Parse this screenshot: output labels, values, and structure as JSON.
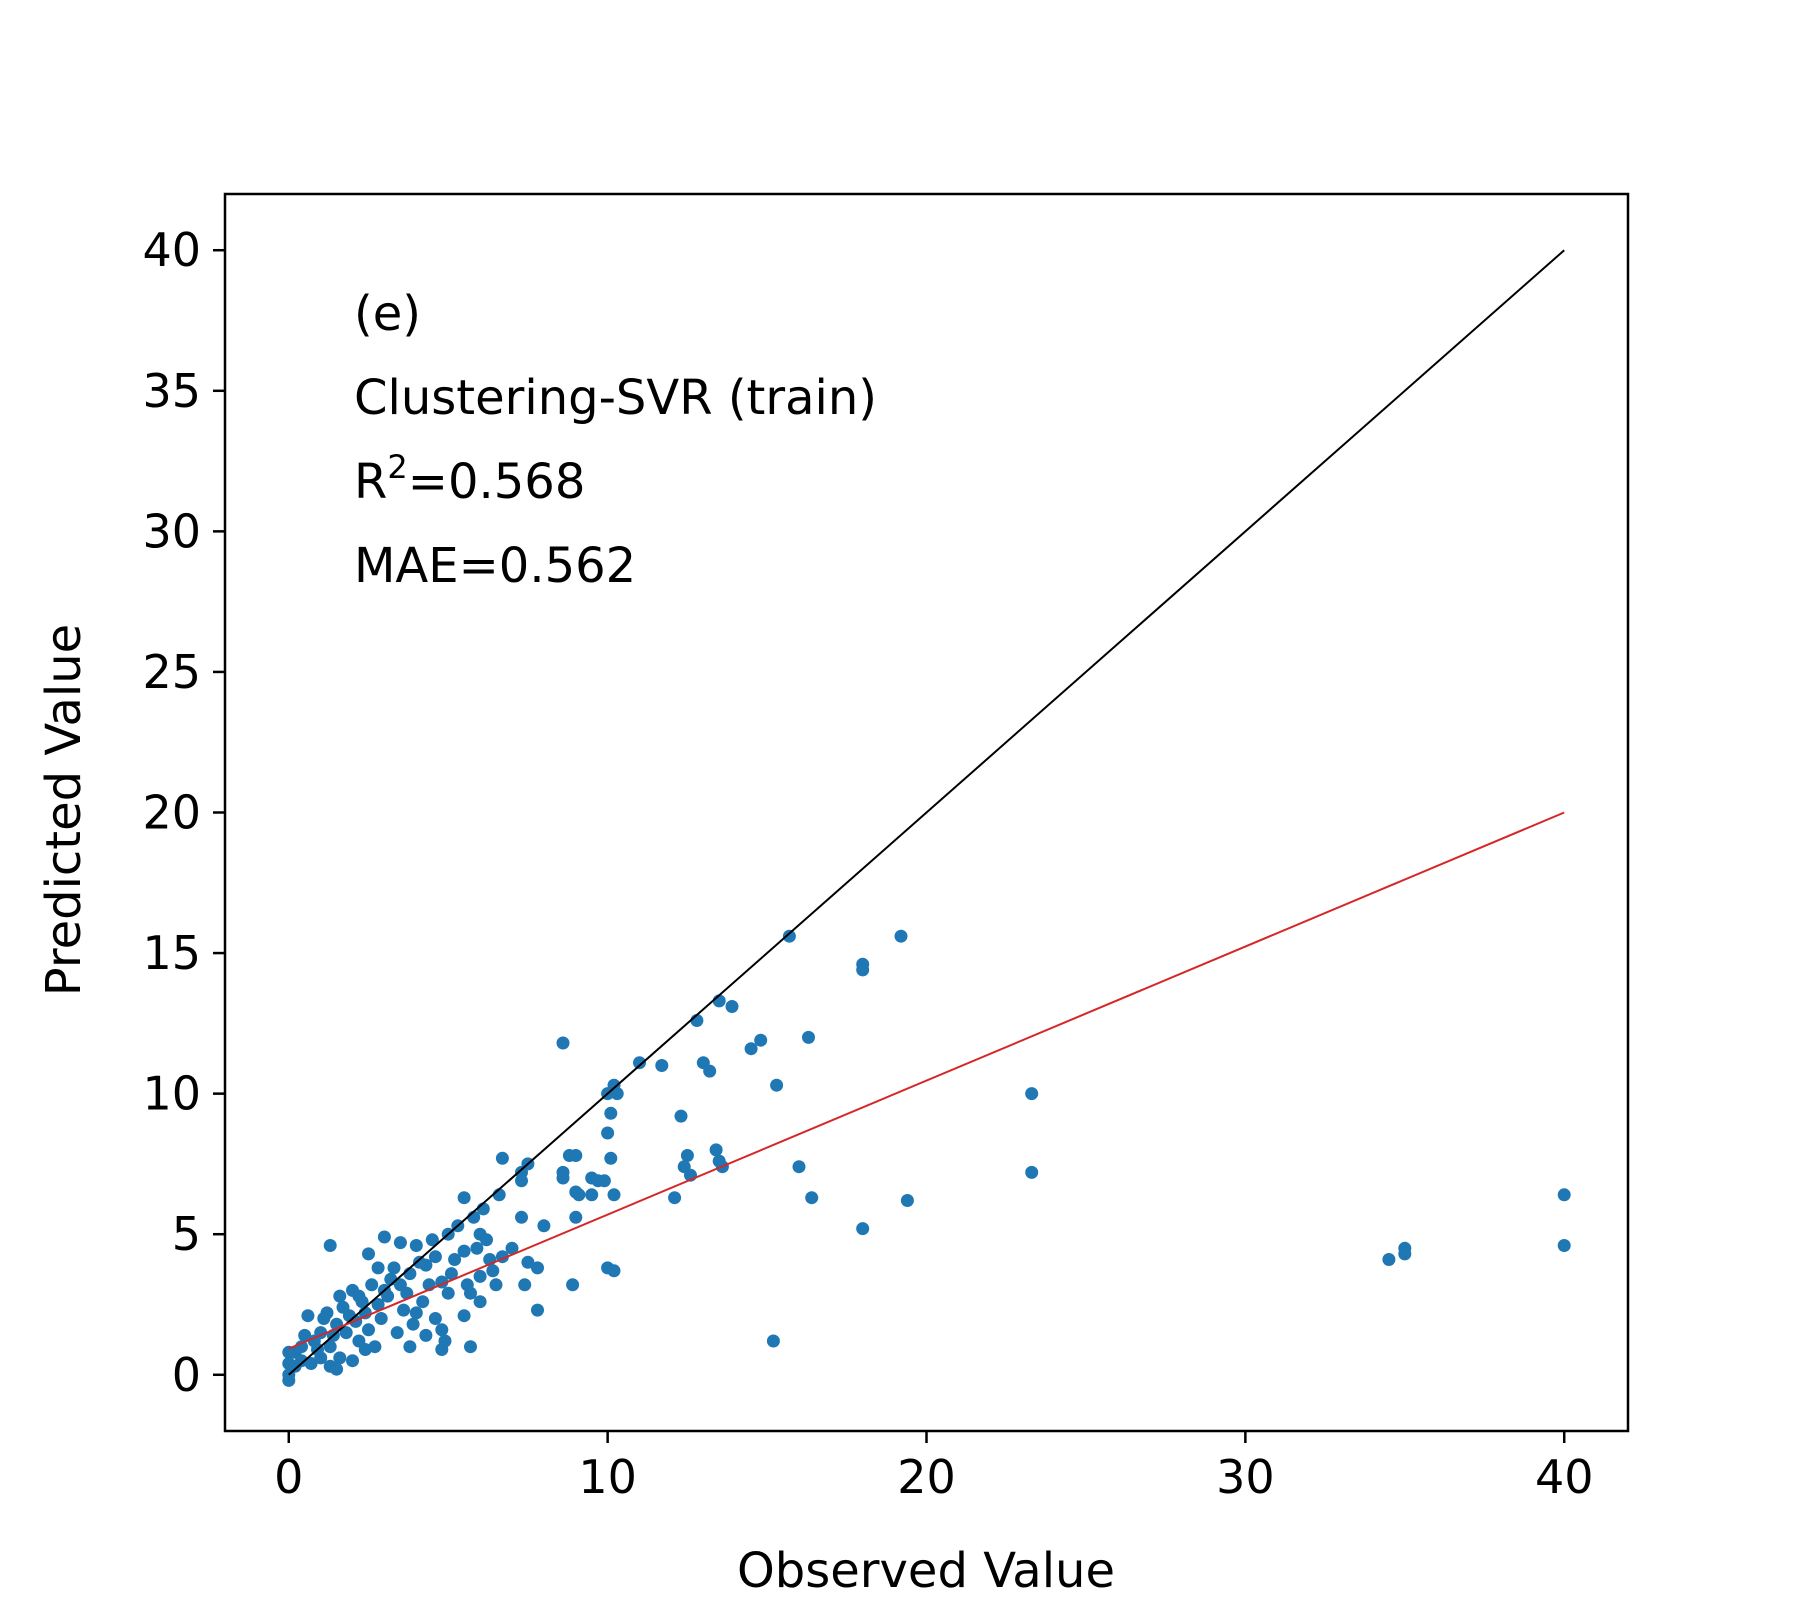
{
  "chart_data": {
    "type": "scatter",
    "xlabel": "Observed Value",
    "ylabel": "Predicted Value",
    "xlim": [
      -2,
      42
    ],
    "ylim": [
      -2,
      42
    ],
    "xticks": [
      "0",
      "10",
      "20",
      "30",
      "40"
    ],
    "yticks": [
      "0",
      "5",
      "10",
      "15",
      "20",
      "25",
      "30",
      "35",
      "40"
    ],
    "annotations": {
      "panel": "(e)",
      "model": "Clustering-SVR (train)",
      "r2_prefix": "R",
      "r2_sup": "2",
      "r2_value": "=0.568",
      "mae": "MAE=0.562"
    },
    "grid": false,
    "colors": {
      "points": "#1f77b4",
      "identity_line": "#000000",
      "fit_line": "#d62728"
    },
    "lines": [
      {
        "kind": "identity",
        "x": [
          0,
          40
        ],
        "y": [
          0,
          40
        ]
      },
      {
        "kind": "fit",
        "x": [
          0,
          40
        ],
        "y": [
          0.93,
          20.0
        ]
      }
    ],
    "series": [
      {
        "points": [
          [
            15.7,
            15.6
          ],
          [
            19.2,
            15.6
          ],
          [
            18.0,
            14.6
          ],
          [
            18.0,
            14.4
          ],
          [
            13.5,
            13.3
          ],
          [
            13.9,
            13.1
          ],
          [
            12.8,
            12.6
          ],
          [
            8.6,
            11.8
          ],
          [
            14.8,
            11.9
          ],
          [
            16.3,
            12.0
          ],
          [
            14.5,
            11.6
          ],
          [
            11.0,
            11.1
          ],
          [
            11.7,
            11.0
          ],
          [
            13.0,
            11.1
          ],
          [
            13.2,
            10.8
          ],
          [
            10.2,
            10.3
          ],
          [
            10.0,
            10.0
          ],
          [
            10.3,
            10.0
          ],
          [
            15.3,
            10.3
          ],
          [
            23.3,
            10.0
          ],
          [
            10.1,
            9.3
          ],
          [
            12.3,
            9.2
          ],
          [
            10.0,
            8.6
          ],
          [
            13.4,
            8.0
          ],
          [
            12.5,
            7.8
          ],
          [
            8.8,
            7.8
          ],
          [
            9.0,
            7.8
          ],
          [
            10.1,
            7.7
          ],
          [
            13.5,
            7.6
          ],
          [
            6.7,
            7.7
          ],
          [
            7.5,
            7.5
          ],
          [
            7.3,
            7.2
          ],
          [
            8.6,
            7.2
          ],
          [
            8.6,
            7.0
          ],
          [
            9.5,
            7.0
          ],
          [
            9.7,
            6.9
          ],
          [
            9.9,
            6.9
          ],
          [
            7.3,
            6.9
          ],
          [
            13.6,
            7.4
          ],
          [
            16.0,
            7.4
          ],
          [
            12.4,
            7.4
          ],
          [
            12.6,
            7.1
          ],
          [
            23.3,
            7.2
          ],
          [
            6.6,
            6.4
          ],
          [
            9.0,
            6.5
          ],
          [
            9.1,
            6.4
          ],
          [
            9.5,
            6.4
          ],
          [
            10.2,
            6.4
          ],
          [
            12.1,
            6.3
          ],
          [
            16.4,
            6.3
          ],
          [
            19.4,
            6.2
          ],
          [
            40.0,
            6.4
          ],
          [
            9.0,
            5.6
          ],
          [
            7.3,
            5.6
          ],
          [
            8.0,
            5.3
          ],
          [
            5.5,
            6.3
          ],
          [
            18.0,
            5.2
          ],
          [
            6.0,
            5.0
          ],
          [
            6.2,
            4.8
          ],
          [
            40.0,
            4.6
          ],
          [
            35.0,
            4.5
          ],
          [
            35.0,
            4.3
          ],
          [
            34.5,
            4.1
          ],
          [
            7.0,
            4.5
          ],
          [
            7.5,
            4.0
          ],
          [
            7.8,
            3.8
          ],
          [
            10.0,
            3.8
          ],
          [
            10.2,
            3.7
          ],
          [
            8.9,
            3.2
          ],
          [
            7.4,
            3.2
          ],
          [
            6.5,
            3.2
          ],
          [
            6.0,
            3.5
          ],
          [
            5.7,
            2.9
          ],
          [
            6.0,
            2.6
          ],
          [
            5.5,
            2.1
          ],
          [
            7.8,
            2.3
          ],
          [
            4.8,
            1.6
          ],
          [
            4.9,
            1.2
          ],
          [
            5.7,
            1.0
          ],
          [
            4.8,
            0.9
          ],
          [
            15.2,
            1.2
          ],
          [
            1.3,
            4.6
          ],
          [
            2.5,
            4.3
          ],
          [
            3.0,
            4.9
          ],
          [
            3.5,
            4.7
          ],
          [
            4.0,
            4.6
          ],
          [
            4.5,
            4.8
          ],
          [
            5.0,
            5.0
          ],
          [
            5.3,
            5.3
          ],
          [
            5.8,
            5.6
          ],
          [
            6.1,
            5.9
          ],
          [
            4.3,
            3.9
          ],
          [
            5.2,
            4.1
          ],
          [
            5.5,
            4.4
          ],
          [
            4.8,
            3.3
          ],
          [
            5.0,
            2.9
          ],
          [
            4.2,
            2.6
          ],
          [
            3.6,
            2.3
          ],
          [
            4.6,
            2.0
          ],
          [
            3.9,
            1.8
          ],
          [
            3.4,
            1.5
          ],
          [
            3.8,
            1.0
          ],
          [
            4.3,
            1.4
          ],
          [
            2.8,
            3.8
          ],
          [
            3.2,
            3.4
          ],
          [
            2.0,
            3.0
          ],
          [
            2.3,
            2.6
          ],
          [
            1.6,
            2.8
          ],
          [
            1.2,
            2.2
          ],
          [
            1.5,
            1.8
          ],
          [
            1.9,
            2.1
          ],
          [
            2.5,
            1.6
          ],
          [
            2.9,
            2.0
          ],
          [
            3.1,
            2.8
          ],
          [
            2.6,
            3.2
          ],
          [
            2.2,
            1.2
          ],
          [
            2.7,
            1.0
          ],
          [
            1.6,
            0.6
          ],
          [
            1.3,
            1.0
          ],
          [
            1.0,
            1.5
          ],
          [
            0.8,
            1.2
          ],
          [
            0.6,
            2.1
          ],
          [
            0.4,
            1.0
          ],
          [
            0.2,
            0.8
          ],
          [
            0.0,
            0.8
          ],
          [
            0.0,
            0.4
          ],
          [
            0.0,
            0.0
          ],
          [
            0.0,
            -0.2
          ],
          [
            0.2,
            0.3
          ],
          [
            0.4,
            0.5
          ],
          [
            0.7,
            0.4
          ],
          [
            1.0,
            0.6
          ],
          [
            1.3,
            0.3
          ],
          [
            1.4,
            1.4
          ],
          [
            1.8,
            1.5
          ],
          [
            2.1,
            1.9
          ],
          [
            2.4,
            2.2
          ],
          [
            2.8,
            2.5
          ],
          [
            3.0,
            3.0
          ],
          [
            3.5,
            3.2
          ],
          [
            3.8,
            3.6
          ],
          [
            4.1,
            4.0
          ],
          [
            4.6,
            4.2
          ],
          [
            0.9,
            0.9
          ],
          [
            0.5,
            1.4
          ],
          [
            1.1,
            2.0
          ],
          [
            1.7,
            2.4
          ],
          [
            2.2,
            2.8
          ],
          [
            3.3,
            3.8
          ],
          [
            3.7,
            2.9
          ],
          [
            4.4,
            3.2
          ],
          [
            5.1,
            3.6
          ],
          [
            5.6,
            3.2
          ],
          [
            6.3,
            4.1
          ],
          [
            6.7,
            4.2
          ],
          [
            6.4,
            3.7
          ],
          [
            5.9,
            4.5
          ],
          [
            4.0,
            2.2
          ],
          [
            2.0,
            0.5
          ],
          [
            1.5,
            0.2
          ],
          [
            2.4,
            0.9
          ]
        ]
      }
    ]
  }
}
